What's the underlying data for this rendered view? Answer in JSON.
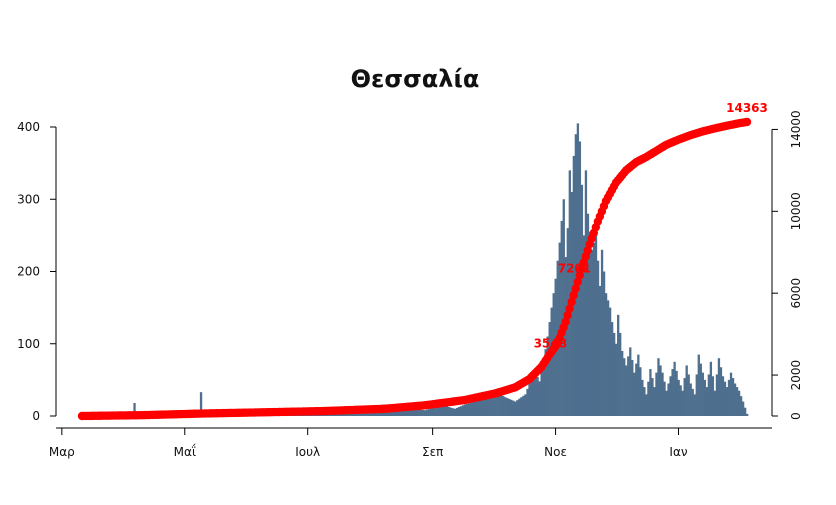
{
  "chart_data": {
    "type": "bar",
    "title": "Θεσσαλία",
    "colors": {
      "bars": "#4f6f8f",
      "cumulative": "#ff0000"
    },
    "x_axis": {
      "start_day": 0,
      "end_day": 330,
      "ticks": [
        {
          "day": -10,
          "label": "Μαρ"
        },
        {
          "day": 51,
          "label": "Μαΐ"
        },
        {
          "day": 112,
          "label": "Ιουλ"
        },
        {
          "day": 174,
          "label": "Σεπ"
        },
        {
          "day": 235,
          "label": "Νοε"
        },
        {
          "day": 296,
          "label": "Ιαν"
        }
      ]
    },
    "y_left": {
      "ylim": [
        0,
        420
      ],
      "ticks": [
        0,
        100,
        200,
        300,
        400
      ]
    },
    "y_right": {
      "ylim": [
        0,
        15000
      ],
      "ticks": [
        0,
        2000,
        6000,
        10000,
        14000
      ]
    },
    "bar_breakpoints": [
      [
        0,
        1
      ],
      [
        25,
        2
      ],
      [
        26,
        18
      ],
      [
        27,
        2
      ],
      [
        40,
        3
      ],
      [
        58,
        4
      ],
      [
        59,
        33
      ],
      [
        60,
        8
      ],
      [
        62,
        5
      ],
      [
        70,
        4
      ],
      [
        90,
        3
      ],
      [
        110,
        4
      ],
      [
        130,
        6
      ],
      [
        140,
        8
      ],
      [
        145,
        14
      ],
      [
        150,
        16
      ],
      [
        155,
        12
      ],
      [
        160,
        15
      ],
      [
        165,
        10
      ],
      [
        170,
        8
      ],
      [
        175,
        12
      ],
      [
        180,
        14
      ],
      [
        185,
        10
      ],
      [
        190,
        16
      ],
      [
        195,
        20
      ],
      [
        200,
        28
      ],
      [
        205,
        34
      ],
      [
        210,
        26
      ],
      [
        215,
        20
      ],
      [
        220,
        30
      ],
      [
        222,
        45
      ],
      [
        225,
        60
      ],
      [
        227,
        48
      ],
      [
        229,
        75
      ],
      [
        231,
        110
      ],
      [
        233,
        150
      ],
      [
        235,
        190
      ],
      [
        237,
        240
      ],
      [
        239,
        300
      ],
      [
        240,
        220
      ],
      [
        241,
        260
      ],
      [
        242,
        340
      ],
      [
        243,
        310
      ],
      [
        244,
        360
      ],
      [
        245,
        390
      ],
      [
        246,
        405
      ],
      [
        247,
        380
      ],
      [
        248,
        320
      ],
      [
        249,
        250
      ],
      [
        250,
        340
      ],
      [
        251,
        280
      ],
      [
        253,
        230
      ],
      [
        255,
        250
      ],
      [
        257,
        180
      ],
      [
        258,
        230
      ],
      [
        260,
        170
      ],
      [
        262,
        150
      ],
      [
        263,
        130
      ],
      [
        265,
        100
      ],
      [
        266,
        140
      ],
      [
        268,
        90
      ],
      [
        270,
        70
      ],
      [
        272,
        95
      ],
      [
        274,
        60
      ],
      [
        276,
        85
      ],
      [
        278,
        50
      ],
      [
        280,
        30
      ],
      [
        282,
        65
      ],
      [
        284,
        40
      ],
      [
        286,
        80
      ],
      [
        288,
        60
      ],
      [
        290,
        35
      ],
      [
        292,
        55
      ],
      [
        294,
        75
      ],
      [
        296,
        50
      ],
      [
        298,
        35
      ],
      [
        300,
        70
      ],
      [
        302,
        45
      ],
      [
        304,
        30
      ],
      [
        306,
        85
      ],
      [
        308,
        60
      ],
      [
        310,
        40
      ],
      [
        312,
        75
      ],
      [
        314,
        35
      ],
      [
        316,
        80
      ],
      [
        318,
        55
      ],
      [
        320,
        40
      ],
      [
        322,
        60
      ],
      [
        324,
        45
      ],
      [
        326,
        35
      ],
      [
        328,
        20
      ],
      [
        330,
        3
      ]
    ],
    "cumulative_breakpoints": [
      [
        0,
        0
      ],
      [
        30,
        40
      ],
      [
        60,
        120
      ],
      [
        90,
        180
      ],
      [
        120,
        240
      ],
      [
        150,
        350
      ],
      [
        170,
        520
      ],
      [
        190,
        780
      ],
      [
        205,
        1100
      ],
      [
        215,
        1400
      ],
      [
        222,
        1800
      ],
      [
        228,
        2400
      ],
      [
        232,
        3000
      ],
      [
        236,
        3548
      ],
      [
        240,
        4600
      ],
      [
        244,
        5900
      ],
      [
        248,
        7201
      ],
      [
        252,
        8400
      ],
      [
        256,
        9500
      ],
      [
        260,
        10500
      ],
      [
        265,
        11400
      ],
      [
        270,
        12000
      ],
      [
        275,
        12400
      ],
      [
        280,
        12650
      ],
      [
        285,
        12950
      ],
      [
        290,
        13250
      ],
      [
        296,
        13500
      ],
      [
        302,
        13720
      ],
      [
        308,
        13900
      ],
      [
        314,
        14050
      ],
      [
        320,
        14180
      ],
      [
        326,
        14300
      ],
      [
        330,
        14363
      ]
    ],
    "annotations": [
      {
        "day": 236,
        "value": 3548,
        "label": "3548"
      },
      {
        "day": 248,
        "value": 7201,
        "label": "7201"
      },
      {
        "day": 330,
        "value": 14363,
        "label": "14363"
      }
    ]
  }
}
